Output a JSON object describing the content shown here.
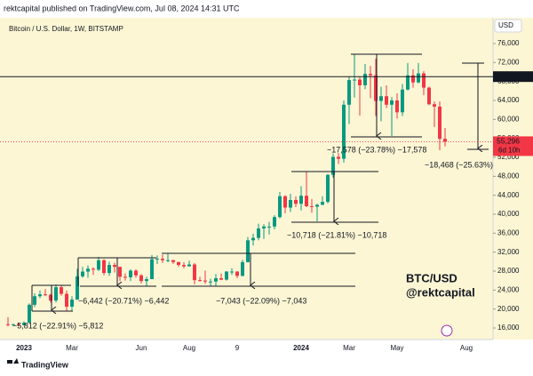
{
  "header": {
    "publisher": "rektcapital published on TradingView.com, Jul 08, 2024 14:31 UTC",
    "brand": "TradingView"
  },
  "chart_data": {
    "type": "candlestick",
    "title": "Bitcoin / U.S. Dollar, 1W, BITSTAMP",
    "currency": "USD",
    "watermark": [
      "BTC/USD",
      "@rektcapital"
    ],
    "up_color": "#089981",
    "down_color": "#f23645",
    "categories": [
      null,
      null,
      null,
      "2023",
      null,
      null,
      null,
      null,
      null,
      null,
      null,
      null,
      "Mar",
      null,
      null,
      null,
      null,
      null,
      null,
      null,
      null,
      null,
      null,
      null,
      null,
      "Jun",
      null,
      null,
      null,
      null,
      null,
      null,
      null,
      null,
      "Aug",
      null,
      null,
      null,
      null,
      null,
      null,
      null,
      null,
      "9",
      null,
      null,
      null,
      null,
      null,
      null,
      null,
      null,
      null,
      null,
      null,
      "2024",
      null,
      null,
      null,
      null,
      null,
      null,
      null,
      null,
      "Mar",
      null,
      null,
      null,
      null,
      null,
      null,
      null,
      null,
      "May",
      null,
      null,
      null,
      null,
      null,
      null,
      null,
      null,
      null,
      null,
      null,
      null,
      "Aug",
      null,
      null
    ],
    "open": [
      16800,
      16700,
      16800,
      16600,
      17100,
      20900,
      22700,
      23100,
      23000,
      21800,
      24600,
      23200,
      20500,
      22000,
      26900,
      27900,
      28500,
      28300,
      30300,
      27600,
      29300,
      28900,
      26800,
      26700,
      28100,
      27100,
      25900,
      26300,
      30500,
      30600,
      30300,
      30300,
      29900,
      29300,
      29000,
      29400,
      26100,
      26000,
      25800,
      25800,
      26500,
      26200,
      27900,
      27900,
      27000,
      29900,
      34500,
      35000,
      37000,
      37400,
      37400,
      39400,
      43800,
      41400,
      43000,
      42200,
      43900,
      41700,
      41600,
      42000,
      42600,
      48300,
      52100,
      51700,
      63100,
      68300,
      68400,
      67200,
      69600,
      69300,
      63900,
      64900,
      63100,
      64000,
      61500,
      66300,
      69300,
      67800,
      69700,
      66700,
      63200,
      62700,
      55900,
      null,
      null,
      null,
      null,
      null,
      null
    ],
    "high": [
      18300,
      16900,
      16950,
      17400,
      21200,
      23300,
      23900,
      24200,
      23200,
      25200,
      25100,
      23900,
      22700,
      28500,
      28900,
      29200,
      28800,
      31000,
      30500,
      30000,
      29800,
      28900,
      27500,
      28400,
      28400,
      27400,
      26800,
      31400,
      31300,
      31500,
      31800,
      30400,
      30000,
      29900,
      30200,
      29700,
      26800,
      28100,
      26400,
      27400,
      27500,
      28000,
      28600,
      28000,
      30400,
      35200,
      35900,
      38000,
      37900,
      38400,
      39800,
      44700,
      44000,
      44300,
      43800,
      45900,
      48900,
      43200,
      42200,
      43800,
      48500,
      52800,
      52900,
      64000,
      69000,
      73800,
      68900,
      71700,
      71300,
      72800,
      66900,
      67200,
      64700,
      65500,
      67500,
      71900,
      70600,
      71900,
      70200,
      66900,
      63800,
      63800,
      58200,
      null,
      null,
      null,
      null,
      null,
      null
    ],
    "low": [
      16300,
      16500,
      16300,
      16500,
      17100,
      20400,
      22300,
      22700,
      21400,
      21400,
      22800,
      19600,
      19600,
      21900,
      26600,
      26600,
      27200,
      28000,
      27100,
      27000,
      27700,
      25900,
      26000,
      25900,
      26600,
      25400,
      24800,
      26300,
      29500,
      29700,
      29900,
      29500,
      28900,
      28600,
      29000,
      25200,
      25800,
      25300,
      24900,
      24900,
      26100,
      26000,
      27200,
      26500,
      26900,
      29800,
      33400,
      34500,
      34800,
      35700,
      36800,
      39100,
      40200,
      40500,
      41500,
      40800,
      41500,
      40300,
      38500,
      41900,
      42300,
      47700,
      50600,
      50900,
      59000,
      64600,
      60800,
      66400,
      64500,
      60700,
      59600,
      62400,
      56500,
      60200,
      60700,
      66100,
      66700,
      67600,
      65100,
      63000,
      58400,
      53500,
      54300,
      null,
      null,
      null,
      null,
      null,
      null
    ],
    "close": [
      16700,
      16800,
      16600,
      17100,
      20900,
      22700,
      23100,
      23000,
      21800,
      24600,
      23200,
      20500,
      22000,
      26900,
      27900,
      28500,
      28300,
      30300,
      27600,
      29300,
      28900,
      26800,
      26700,
      28100,
      27100,
      25900,
      26300,
      30500,
      30600,
      30300,
      30300,
      29900,
      29300,
      29000,
      29400,
      26100,
      26000,
      25800,
      25800,
      26500,
      26200,
      27900,
      27900,
      27000,
      29900,
      34500,
      35000,
      37000,
      37400,
      37400,
      39400,
      43800,
      41400,
      43000,
      42200,
      43900,
      41700,
      41600,
      42000,
      42600,
      48300,
      52100,
      51700,
      63100,
      68300,
      68400,
      67200,
      69600,
      69300,
      63900,
      64900,
      63100,
      64000,
      61500,
      66300,
      69300,
      67800,
      69700,
      66700,
      63200,
      62700,
      55900,
      55296,
      null,
      null,
      null,
      null,
      null,
      null
    ],
    "ylim": [
      13560,
      81440
    ],
    "yticks": [
      {
        "value": 16000,
        "label": "16,000"
      },
      {
        "value": 20000,
        "label": "20,000"
      },
      {
        "value": 24000,
        "label": "24,000"
      },
      {
        "value": 28000,
        "label": "28,000"
      },
      {
        "value": 32000,
        "label": "32,000"
      },
      {
        "value": 36000,
        "label": "36,000"
      },
      {
        "value": 40000,
        "label": "40,000"
      },
      {
        "value": 44000,
        "label": "44,000"
      },
      {
        "value": 48000,
        "label": "48,000"
      },
      {
        "value": 52000,
        "label": "52,000"
      },
      {
        "value": 56000,
        "label": "56,000"
      },
      {
        "value": 60000,
        "label": "60,000"
      },
      {
        "value": 64000,
        "label": "64,000"
      },
      {
        "value": 68000,
        "label": "68,000"
      },
      {
        "value": 72000,
        "label": "72,000"
      },
      {
        "value": 76000,
        "label": "76,000"
      }
    ],
    "price_lines": [
      {
        "value": 69027,
        "label": "69,027",
        "color": "#131722"
      },
      {
        "value": 55296,
        "label": "55,296",
        "color": "#f23645",
        "countdown": "6d 10h"
      }
    ],
    "annotations": [
      "−5,812 (−22.91%) −5,812",
      "−6,442 (−20.71%) −6,442",
      "−7,043 (−22.09%) −7,043",
      "−10,718 (−21.81%) −10,718",
      "−17,578 (−23.78%) −17,578",
      "−18,468 (−25.63%)"
    ]
  }
}
